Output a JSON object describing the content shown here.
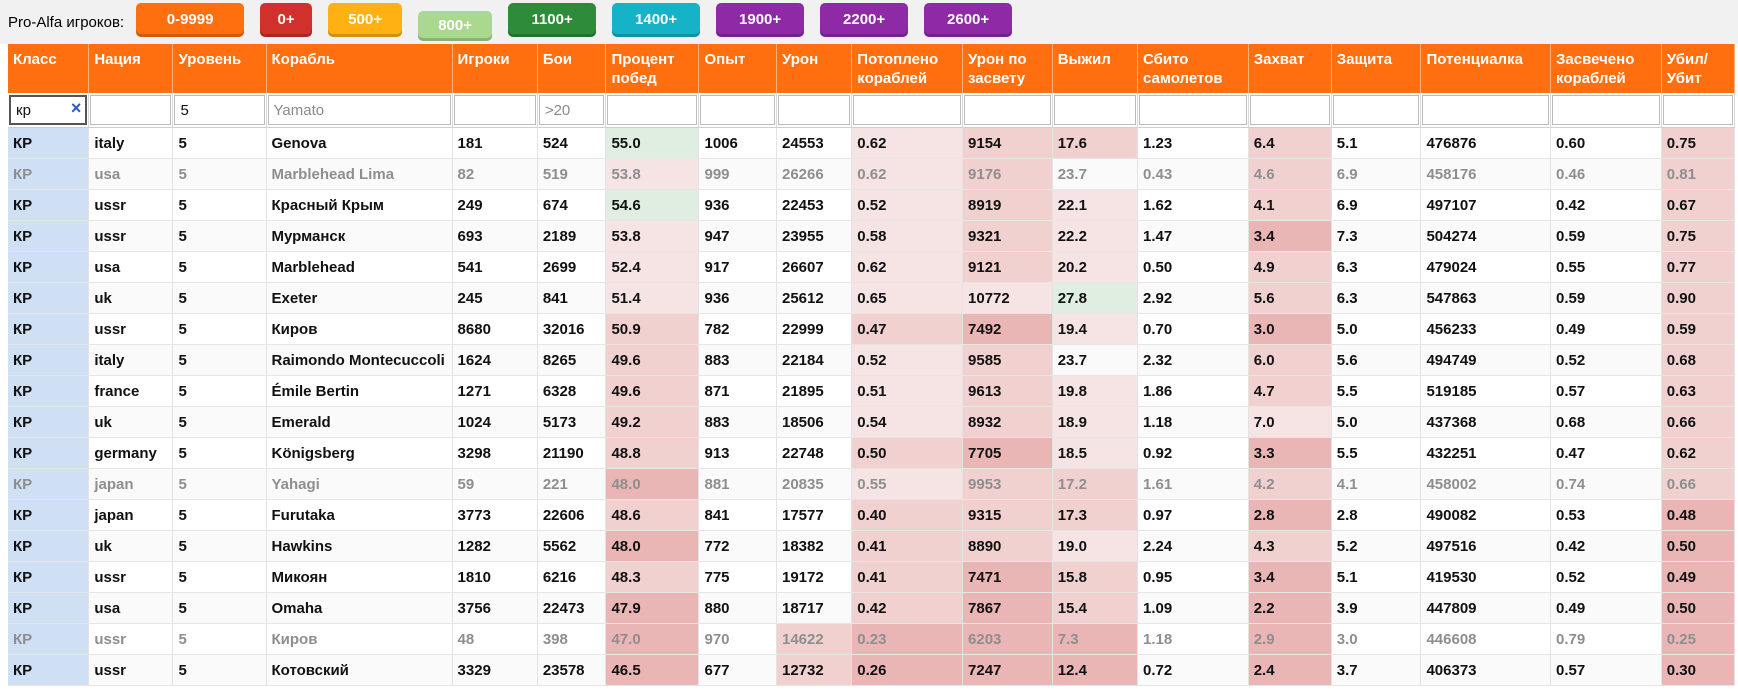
{
  "topbar": {
    "label": "Pro-Alfa игроков:",
    "buttons": [
      {
        "label": "0-9999",
        "color": "#ff6e0f",
        "w": 108
      },
      {
        "label": "0+",
        "color": "#d0312d",
        "w": 52
      },
      {
        "label": "500+",
        "color": "#ffb114",
        "w": 74
      },
      {
        "label": "800+",
        "color": "#a9d88f",
        "w": 74
      },
      {
        "label": "1100+",
        "color": "#2e8b3a",
        "w": 88
      },
      {
        "label": "1400+",
        "color": "#16b2c8",
        "w": 88
      },
      {
        "label": "1900+",
        "color": "#8e2aa6",
        "w": 88
      },
      {
        "label": "2200+",
        "color": "#8e2aa6",
        "w": 88
      },
      {
        "label": "2600+",
        "color": "#8e2aa6",
        "w": 88
      }
    ]
  },
  "columns": [
    "Класс",
    "Нация",
    "Уровень",
    "Корабль",
    "Игроки",
    "Бои",
    "Процент побед",
    "Опыт",
    "Урон",
    "Потоплено кораблей",
    "Урон по засвету",
    "Выжил",
    "Сбито самолетов",
    "Захват",
    "Защита",
    "Потенциалка",
    "Засвечено кораблей",
    "Убил/ Убит"
  ],
  "filters": [
    {
      "value": "кр",
      "placeholder": "",
      "clear": "×"
    },
    {
      "value": "",
      "placeholder": ""
    },
    {
      "value": "5",
      "placeholder": ""
    },
    {
      "value": "",
      "placeholder": "Yamato"
    },
    {
      "value": "",
      "placeholder": ""
    },
    {
      "value": "",
      "placeholder": ">20"
    },
    {
      "value": "",
      "placeholder": ""
    },
    {
      "value": "",
      "placeholder": ""
    },
    {
      "value": "",
      "placeholder": ""
    },
    {
      "value": "",
      "placeholder": ""
    },
    {
      "value": "",
      "placeholder": ""
    },
    {
      "value": "",
      "placeholder": ""
    },
    {
      "value": "",
      "placeholder": ""
    },
    {
      "value": "",
      "placeholder": ""
    },
    {
      "value": "",
      "placeholder": ""
    },
    {
      "value": "",
      "placeholder": ""
    },
    {
      "value": "",
      "placeholder": ""
    },
    {
      "value": "",
      "placeholder": ""
    }
  ],
  "heat_colors": {
    "green": "#dfeee0",
    "pale": "#f6e4e4",
    "mid": "#f1d0d0",
    "strong": "#eab5b5"
  },
  "rows": [
    {
      "cells": [
        "КР",
        "italy",
        "5",
        "Genova",
        "181",
        "524",
        "55.0",
        "1006",
        "24553",
        "0.62",
        "9154",
        "17.6",
        "1.23",
        "6.4",
        "5.1",
        "476876",
        "0.60",
        "0.75"
      ],
      "heat": {
        "6": "green",
        "9": "pale",
        "10": "mid",
        "11": "mid",
        "13": "mid",
        "17": "mid"
      }
    },
    {
      "dim": true,
      "cells": [
        "КР",
        "usa",
        "5",
        "Marblehead Lima",
        "82",
        "519",
        "53.8",
        "999",
        "26266",
        "0.62",
        "9176",
        "23.7",
        "0.43",
        "4.6",
        "6.9",
        "458176",
        "0.46",
        "0.81"
      ],
      "heat": {
        "6": "pale",
        "9": "pale",
        "10": "mid",
        "13": "mid",
        "17": "mid"
      }
    },
    {
      "cells": [
        "КР",
        "ussr",
        "5",
        "Красный Крым",
        "249",
        "674",
        "54.6",
        "936",
        "22453",
        "0.52",
        "8919",
        "22.1",
        "1.62",
        "4.1",
        "6.9",
        "497107",
        "0.42",
        "0.67"
      ],
      "heat": {
        "6": "green",
        "9": "pale",
        "10": "mid",
        "11": "pale",
        "13": "mid",
        "17": "mid"
      }
    },
    {
      "cells": [
        "КР",
        "ussr",
        "5",
        "Мурманск",
        "693",
        "2189",
        "53.8",
        "947",
        "23955",
        "0.58",
        "9321",
        "22.2",
        "1.47",
        "3.4",
        "7.3",
        "504274",
        "0.59",
        "0.75"
      ],
      "heat": {
        "6": "pale",
        "9": "pale",
        "10": "mid",
        "11": "pale",
        "13": "strong",
        "17": "mid"
      }
    },
    {
      "cells": [
        "КР",
        "usa",
        "5",
        "Marblehead",
        "541",
        "2699",
        "52.4",
        "917",
        "26607",
        "0.62",
        "9121",
        "20.2",
        "0.50",
        "4.9",
        "6.3",
        "479024",
        "0.55",
        "0.77"
      ],
      "heat": {
        "6": "pale",
        "9": "pale",
        "10": "mid",
        "11": "pale",
        "13": "mid",
        "17": "mid"
      }
    },
    {
      "cells": [
        "КР",
        "uk",
        "5",
        "Exeter",
        "245",
        "841",
        "51.4",
        "936",
        "25612",
        "0.65",
        "10772",
        "27.8",
        "2.92",
        "5.6",
        "6.3",
        "547863",
        "0.59",
        "0.90"
      ],
      "heat": {
        "6": "pale",
        "9": "pale",
        "10": "pale",
        "11": "green",
        "13": "mid",
        "17": "mid"
      }
    },
    {
      "cells": [
        "КР",
        "ussr",
        "5",
        "Киров",
        "8680",
        "32016",
        "50.9",
        "782",
        "22999",
        "0.47",
        "7492",
        "19.4",
        "0.70",
        "3.0",
        "5.0",
        "456233",
        "0.49",
        "0.59"
      ],
      "heat": {
        "6": "mid",
        "9": "mid",
        "10": "strong",
        "11": "pale",
        "13": "strong",
        "17": "mid"
      }
    },
    {
      "cells": [
        "КР",
        "italy",
        "5",
        "Raimondo Montecuccoli",
        "1624",
        "8265",
        "49.6",
        "883",
        "22184",
        "0.52",
        "9585",
        "23.7",
        "2.32",
        "6.0",
        "5.6",
        "494749",
        "0.52",
        "0.68"
      ],
      "heat": {
        "6": "mid",
        "9": "pale",
        "10": "mid",
        "13": "mid",
        "17": "mid"
      }
    },
    {
      "cells": [
        "КР",
        "france",
        "5",
        "Émile Bertin",
        "1271",
        "6328",
        "49.6",
        "871",
        "21895",
        "0.51",
        "9613",
        "19.8",
        "1.86",
        "4.7",
        "5.5",
        "519185",
        "0.57",
        "0.63"
      ],
      "heat": {
        "6": "mid",
        "9": "pale",
        "10": "mid",
        "11": "pale",
        "13": "mid",
        "17": "mid"
      }
    },
    {
      "cells": [
        "КР",
        "uk",
        "5",
        "Emerald",
        "1024",
        "5173",
        "49.2",
        "883",
        "18506",
        "0.54",
        "8932",
        "18.9",
        "1.18",
        "7.0",
        "5.0",
        "437368",
        "0.68",
        "0.66"
      ],
      "heat": {
        "6": "mid",
        "9": "pale",
        "10": "mid",
        "11": "pale",
        "13": "pale",
        "17": "mid"
      }
    },
    {
      "cells": [
        "КР",
        "germany",
        "5",
        "Königsberg",
        "3298",
        "21190",
        "48.8",
        "913",
        "22748",
        "0.50",
        "7705",
        "18.5",
        "0.92",
        "3.3",
        "5.5",
        "432251",
        "0.47",
        "0.62"
      ],
      "heat": {
        "6": "mid",
        "9": "mid",
        "10": "strong",
        "11": "pale",
        "13": "strong",
        "17": "mid"
      }
    },
    {
      "dim": true,
      "cells": [
        "КР",
        "japan",
        "5",
        "Yahagi",
        "59",
        "221",
        "48.0",
        "881",
        "20835",
        "0.55",
        "9953",
        "17.2",
        "1.61",
        "4.2",
        "4.1",
        "458002",
        "0.74",
        "0.66"
      ],
      "heat": {
        "6": "strong",
        "9": "pale",
        "10": "mid",
        "11": "mid",
        "13": "mid",
        "17": "mid"
      }
    },
    {
      "cells": [
        "КР",
        "japan",
        "5",
        "Furutaka",
        "3773",
        "22606",
        "48.6",
        "841",
        "17577",
        "0.40",
        "9315",
        "17.3",
        "0.97",
        "2.8",
        "2.8",
        "490082",
        "0.53",
        "0.48"
      ],
      "heat": {
        "6": "mid",
        "9": "mid",
        "10": "mid",
        "11": "mid",
        "13": "strong",
        "17": "strong"
      }
    },
    {
      "cells": [
        "КР",
        "uk",
        "5",
        "Hawkins",
        "1282",
        "5562",
        "48.0",
        "772",
        "18382",
        "0.41",
        "8890",
        "19.0",
        "2.24",
        "4.3",
        "5.2",
        "497516",
        "0.42",
        "0.50"
      ],
      "heat": {
        "6": "strong",
        "9": "mid",
        "10": "mid",
        "11": "pale",
        "13": "mid",
        "17": "strong"
      }
    },
    {
      "cells": [
        "КР",
        "ussr",
        "5",
        "Микоян",
        "1810",
        "6216",
        "48.3",
        "775",
        "19172",
        "0.41",
        "7471",
        "15.8",
        "0.95",
        "3.4",
        "5.1",
        "419530",
        "0.52",
        "0.49"
      ],
      "heat": {
        "6": "mid",
        "9": "mid",
        "10": "strong",
        "11": "mid",
        "13": "strong",
        "17": "strong"
      }
    },
    {
      "cells": [
        "КР",
        "usa",
        "5",
        "Omaha",
        "3756",
        "22473",
        "47.9",
        "880",
        "18717",
        "0.42",
        "7867",
        "15.4",
        "1.09",
        "2.2",
        "3.9",
        "447809",
        "0.49",
        "0.50"
      ],
      "heat": {
        "6": "strong",
        "9": "mid",
        "10": "strong",
        "11": "mid",
        "13": "strong",
        "17": "strong"
      }
    },
    {
      "dim": true,
      "cells": [
        "КР",
        "ussr",
        "5",
        "Киров",
        "48",
        "398",
        "47.0",
        "970",
        "14622",
        "0.23",
        "6203",
        "7.3",
        "1.18",
        "2.9",
        "3.0",
        "446608",
        "0.79",
        "0.25"
      ],
      "heat": {
        "6": "strong",
        "8": "mid",
        "9": "strong",
        "10": "strong",
        "11": "strong",
        "13": "strong",
        "17": "strong"
      }
    },
    {
      "cells": [
        "КР",
        "ussr",
        "5",
        "Котовский",
        "3329",
        "23578",
        "46.5",
        "677",
        "12732",
        "0.26",
        "7247",
        "12.4",
        "0.72",
        "2.4",
        "3.7",
        "406373",
        "0.57",
        "0.30"
      ],
      "heat": {
        "6": "strong",
        "8": "mid",
        "9": "strong",
        "10": "strong",
        "11": "strong",
        "13": "strong",
        "17": "strong"
      }
    }
  ]
}
